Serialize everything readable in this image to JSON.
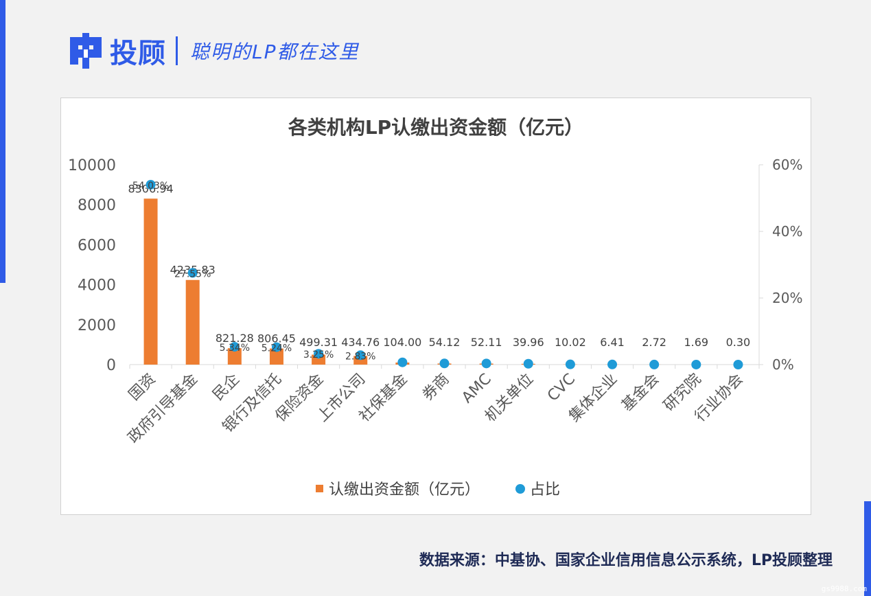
{
  "header": {
    "brand": "投顾",
    "slogan": "聪明的LP都在这里"
  },
  "colors": {
    "accent": "#2f5be7",
    "bar": "#ed7d31",
    "dot": "#1f9bd7"
  },
  "icons": {
    "logo": "lp-logo-icon"
  },
  "chart_data": {
    "type": "bar",
    "title": "各类机构LP认缴出资金额（亿元）",
    "categories": [
      "国资",
      "政府引导基金",
      "民企",
      "银行及信托",
      "保险资金",
      "上市公司",
      "社保基金",
      "券商",
      "AMC",
      "机关单位",
      "CVC",
      "集体企业",
      "基金会",
      "研究院",
      "行业协会"
    ],
    "series": [
      {
        "name": "认缴出资金额（亿元）",
        "type": "bar",
        "axis": "left",
        "values": [
          8306.94,
          4235.83,
          821.28,
          806.45,
          499.31,
          434.76,
          104.0,
          54.12,
          52.11,
          39.96,
          10.02,
          6.41,
          2.72,
          1.69,
          0.3
        ],
        "labels": [
          "8306.94",
          "4235.83",
          "821.28",
          "806.45",
          "499.31",
          "434.76",
          "104.00",
          "54.12",
          "52.11",
          "39.96",
          "10.02",
          "6.41",
          "2.72",
          "1.69",
          "0.30"
        ]
      },
      {
        "name": "占比",
        "type": "scatter",
        "axis": "right",
        "values": [
          54.03,
          27.55,
          5.34,
          5.24,
          3.25,
          2.83,
          0.68,
          0.35,
          0.34,
          0.26,
          0.07,
          0.04,
          0.02,
          0.01,
          0.002
        ],
        "labels": [
          "54.03%",
          "27.55%",
          "5.34%",
          "5.24%",
          "3.25%",
          "2.83%",
          "",
          "",
          "",
          "",
          "",
          "",
          "",
          "",
          ""
        ]
      }
    ],
    "ylim": [
      0,
      10000
    ],
    "yticks": [
      "0",
      "2000",
      "4000",
      "6000",
      "8000",
      "10000"
    ],
    "y2lim": [
      0,
      60
    ],
    "y2ticks": [
      "0%",
      "20%",
      "40%",
      "60%"
    ],
    "legend_position": "bottom",
    "grid": false
  },
  "footer": {
    "source": "数据来源：中基协、国家企业信用信息公示系统，LP投顾整理",
    "watermark": "gs9988.com"
  }
}
